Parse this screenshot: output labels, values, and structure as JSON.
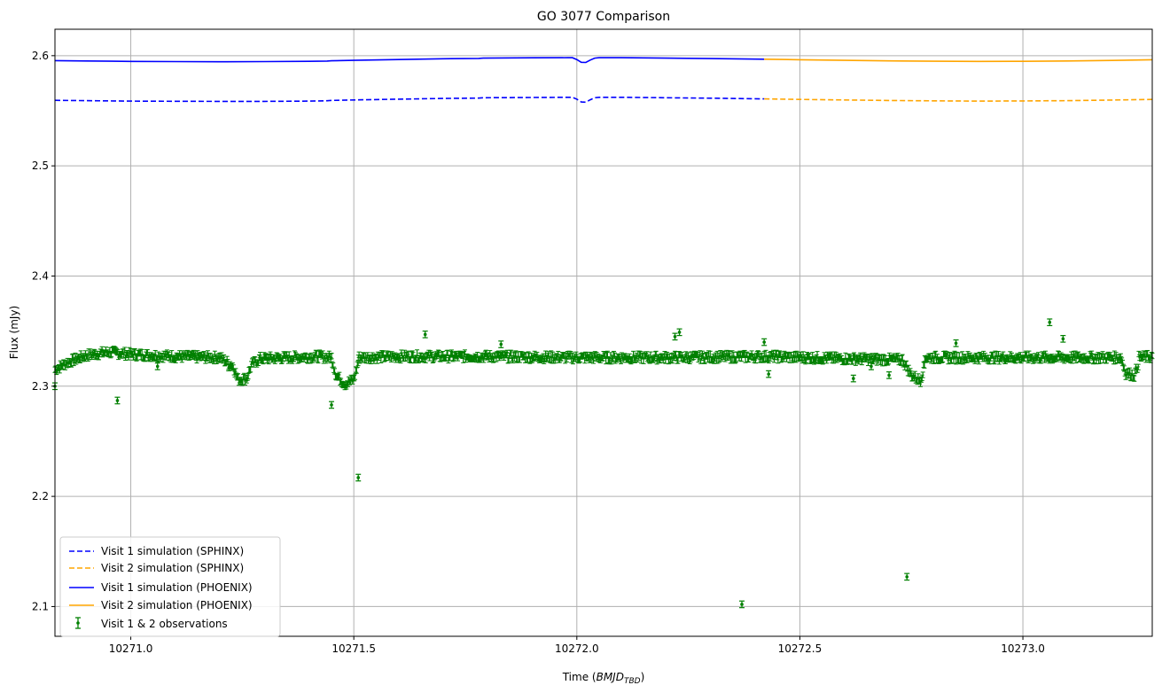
{
  "chart_data": {
    "type": "scatter",
    "title": "GO 3077 Comparison",
    "xlabel_main": "Time (",
    "xlabel_italic": "BMJD",
    "xlabel_sub": "TBD",
    "xlabel_tail": ")",
    "ylabel": "Flux (mJy)",
    "xlim": [
      10270.83,
      10273.29
    ],
    "ylim": [
      2.073,
      2.624
    ],
    "grid": true,
    "legend_position": "lower-left",
    "xticks": [
      10271.0,
      10271.5,
      10272.0,
      10272.5,
      10273.0
    ],
    "xtick_labels": [
      "10271.0",
      "10271.5",
      "10272.0",
      "10272.5",
      "10273.0"
    ],
    "yticks": [
      2.1,
      2.2,
      2.3,
      2.4,
      2.5,
      2.6
    ],
    "ytick_labels": [
      "2.1",
      "2.2",
      "2.3",
      "2.4",
      "2.5",
      "2.6"
    ],
    "colors": {
      "visit1": "#0000ff",
      "visit2": "#ffa500",
      "observations": "#008000",
      "grid": "#b0b0b0"
    },
    "series": [
      {
        "name": "Visit 1 simulation (SPHINX)",
        "style": "dashed",
        "color": "#0000ff",
        "x": [
          10270.83,
          10270.9,
          10271.0,
          10271.1,
          10271.2,
          10271.3,
          10271.4,
          10271.44,
          10271.45,
          10271.5,
          10271.6,
          10271.7,
          10271.78,
          10271.79,
          10271.9,
          10271.98,
          10271.99,
          10272.0,
          10272.01,
          10272.02,
          10272.03,
          10272.04,
          10272.05,
          10272.1,
          10272.2,
          10272.3,
          10272.42
        ],
        "y": [
          2.5595,
          2.5592,
          2.5588,
          2.5586,
          2.5585,
          2.5585,
          2.5588,
          2.5591,
          2.5594,
          2.5598,
          2.5605,
          2.5612,
          2.5615,
          2.5618,
          2.5621,
          2.5622,
          2.5622,
          2.5605,
          2.558,
          2.5578,
          2.56,
          2.5618,
          2.5622,
          2.5622,
          2.5618,
          2.5614,
          2.5608
        ]
      },
      {
        "name": "Visit 2 simulation (SPHINX)",
        "style": "dashed",
        "color": "#ffa500",
        "x": [
          10272.42,
          10272.5,
          10272.6,
          10272.7,
          10272.8,
          10272.9,
          10273.0,
          10273.1,
          10273.2,
          10273.29
        ],
        "y": [
          2.5608,
          2.5603,
          2.5598,
          2.5593,
          2.559,
          2.5588,
          2.5589,
          2.5592,
          2.5597,
          2.5603
        ]
      },
      {
        "name": "Visit 1 simulation (PHOENIX)",
        "style": "solid",
        "color": "#0000ff",
        "x": [
          10270.83,
          10270.9,
          10271.0,
          10271.1,
          10271.2,
          10271.3,
          10271.4,
          10271.44,
          10271.45,
          10271.5,
          10271.6,
          10271.7,
          10271.78,
          10271.79,
          10271.9,
          10271.98,
          10271.99,
          10272.0,
          10272.01,
          10272.02,
          10272.03,
          10272.04,
          10272.05,
          10272.1,
          10272.2,
          10272.3,
          10272.42
        ],
        "y": [
          2.5955,
          2.5952,
          2.5948,
          2.5946,
          2.5945,
          2.5946,
          2.5949,
          2.5951,
          2.5954,
          2.5958,
          2.5965,
          2.5972,
          2.5975,
          2.5978,
          2.5981,
          2.5982,
          2.5982,
          2.5965,
          2.594,
          2.5938,
          2.596,
          2.5978,
          2.5982,
          2.5982,
          2.5978,
          2.5974,
          2.5968
        ]
      },
      {
        "name": "Visit 2 simulation (PHOENIX)",
        "style": "solid",
        "color": "#ffa500",
        "x": [
          10272.42,
          10272.5,
          10272.6,
          10272.7,
          10272.8,
          10272.9,
          10273.0,
          10273.1,
          10273.2,
          10273.29
        ],
        "y": [
          2.5968,
          2.5963,
          2.5958,
          2.5953,
          2.595,
          2.5948,
          2.5949,
          2.5952,
          2.5957,
          2.5963
        ]
      }
    ],
    "observations": {
      "name": "Visit 1 & 2 observations",
      "color": "#008000",
      "error": 0.0025,
      "segments": [
        {
          "x": [
            10270.83,
            10270.86,
            10270.9,
            10270.95,
            10271.0,
            10271.1,
            10271.2
          ],
          "y": [
            2.315,
            2.322,
            2.328,
            2.331,
            2.329,
            2.327,
            2.326
          ]
        },
        {
          "x": [
            10271.2,
            10271.23,
            10271.24,
            10271.26,
            10271.27,
            10271.29
          ],
          "y": [
            2.326,
            2.318,
            2.306,
            2.307,
            2.319,
            2.325
          ]
        },
        {
          "x": [
            10271.29,
            10271.35,
            10271.42,
            10271.45
          ],
          "y": [
            2.325,
            2.326,
            2.327,
            2.326
          ]
        },
        {
          "x": [
            10271.45,
            10271.46,
            10271.48,
            10271.5,
            10271.51
          ],
          "y": [
            2.326,
            2.31,
            2.302,
            2.306,
            2.322
          ]
        },
        {
          "x": [
            10271.51,
            10271.6,
            10271.8,
            10272.0,
            10272.2,
            10272.43
          ],
          "y": [
            2.326,
            2.327,
            2.327,
            2.326,
            2.326,
            2.327
          ]
        },
        {
          "x": [
            10272.43,
            10272.6,
            10272.73
          ],
          "y": [
            2.327,
            2.325,
            2.324
          ]
        },
        {
          "x": [
            10272.73,
            10272.75,
            10272.77,
            10272.78
          ],
          "y": [
            2.324,
            2.31,
            2.305,
            2.32
          ]
        },
        {
          "x": [
            10272.78,
            10272.9,
            10273.1,
            10273.22
          ],
          "y": [
            2.326,
            2.326,
            2.326,
            2.326
          ]
        },
        {
          "x": [
            10273.22,
            10273.23,
            10273.25,
            10273.26
          ],
          "y": [
            2.326,
            2.312,
            2.31,
            2.322
          ]
        },
        {
          "x": [
            10273.26,
            10273.29
          ],
          "y": [
            2.326,
            2.327
          ]
        }
      ],
      "outliers": {
        "x": [
          10270.83,
          10270.97,
          10271.06,
          10271.22,
          10271.45,
          10271.51,
          10271.66,
          10271.83,
          10272.37,
          10272.22,
          10272.23,
          10272.42,
          10272.43,
          10272.62,
          10272.7,
          10272.74,
          10272.85,
          10273.06,
          10273.09,
          10272.66
        ],
        "y": [
          2.3,
          2.287,
          2.318,
          2.317,
          2.283,
          2.217,
          2.347,
          2.338,
          2.102,
          2.345,
          2.349,
          2.34,
          2.311,
          2.307,
          2.31,
          2.127,
          2.339,
          2.358,
          2.343,
          2.318
        ]
      }
    }
  }
}
